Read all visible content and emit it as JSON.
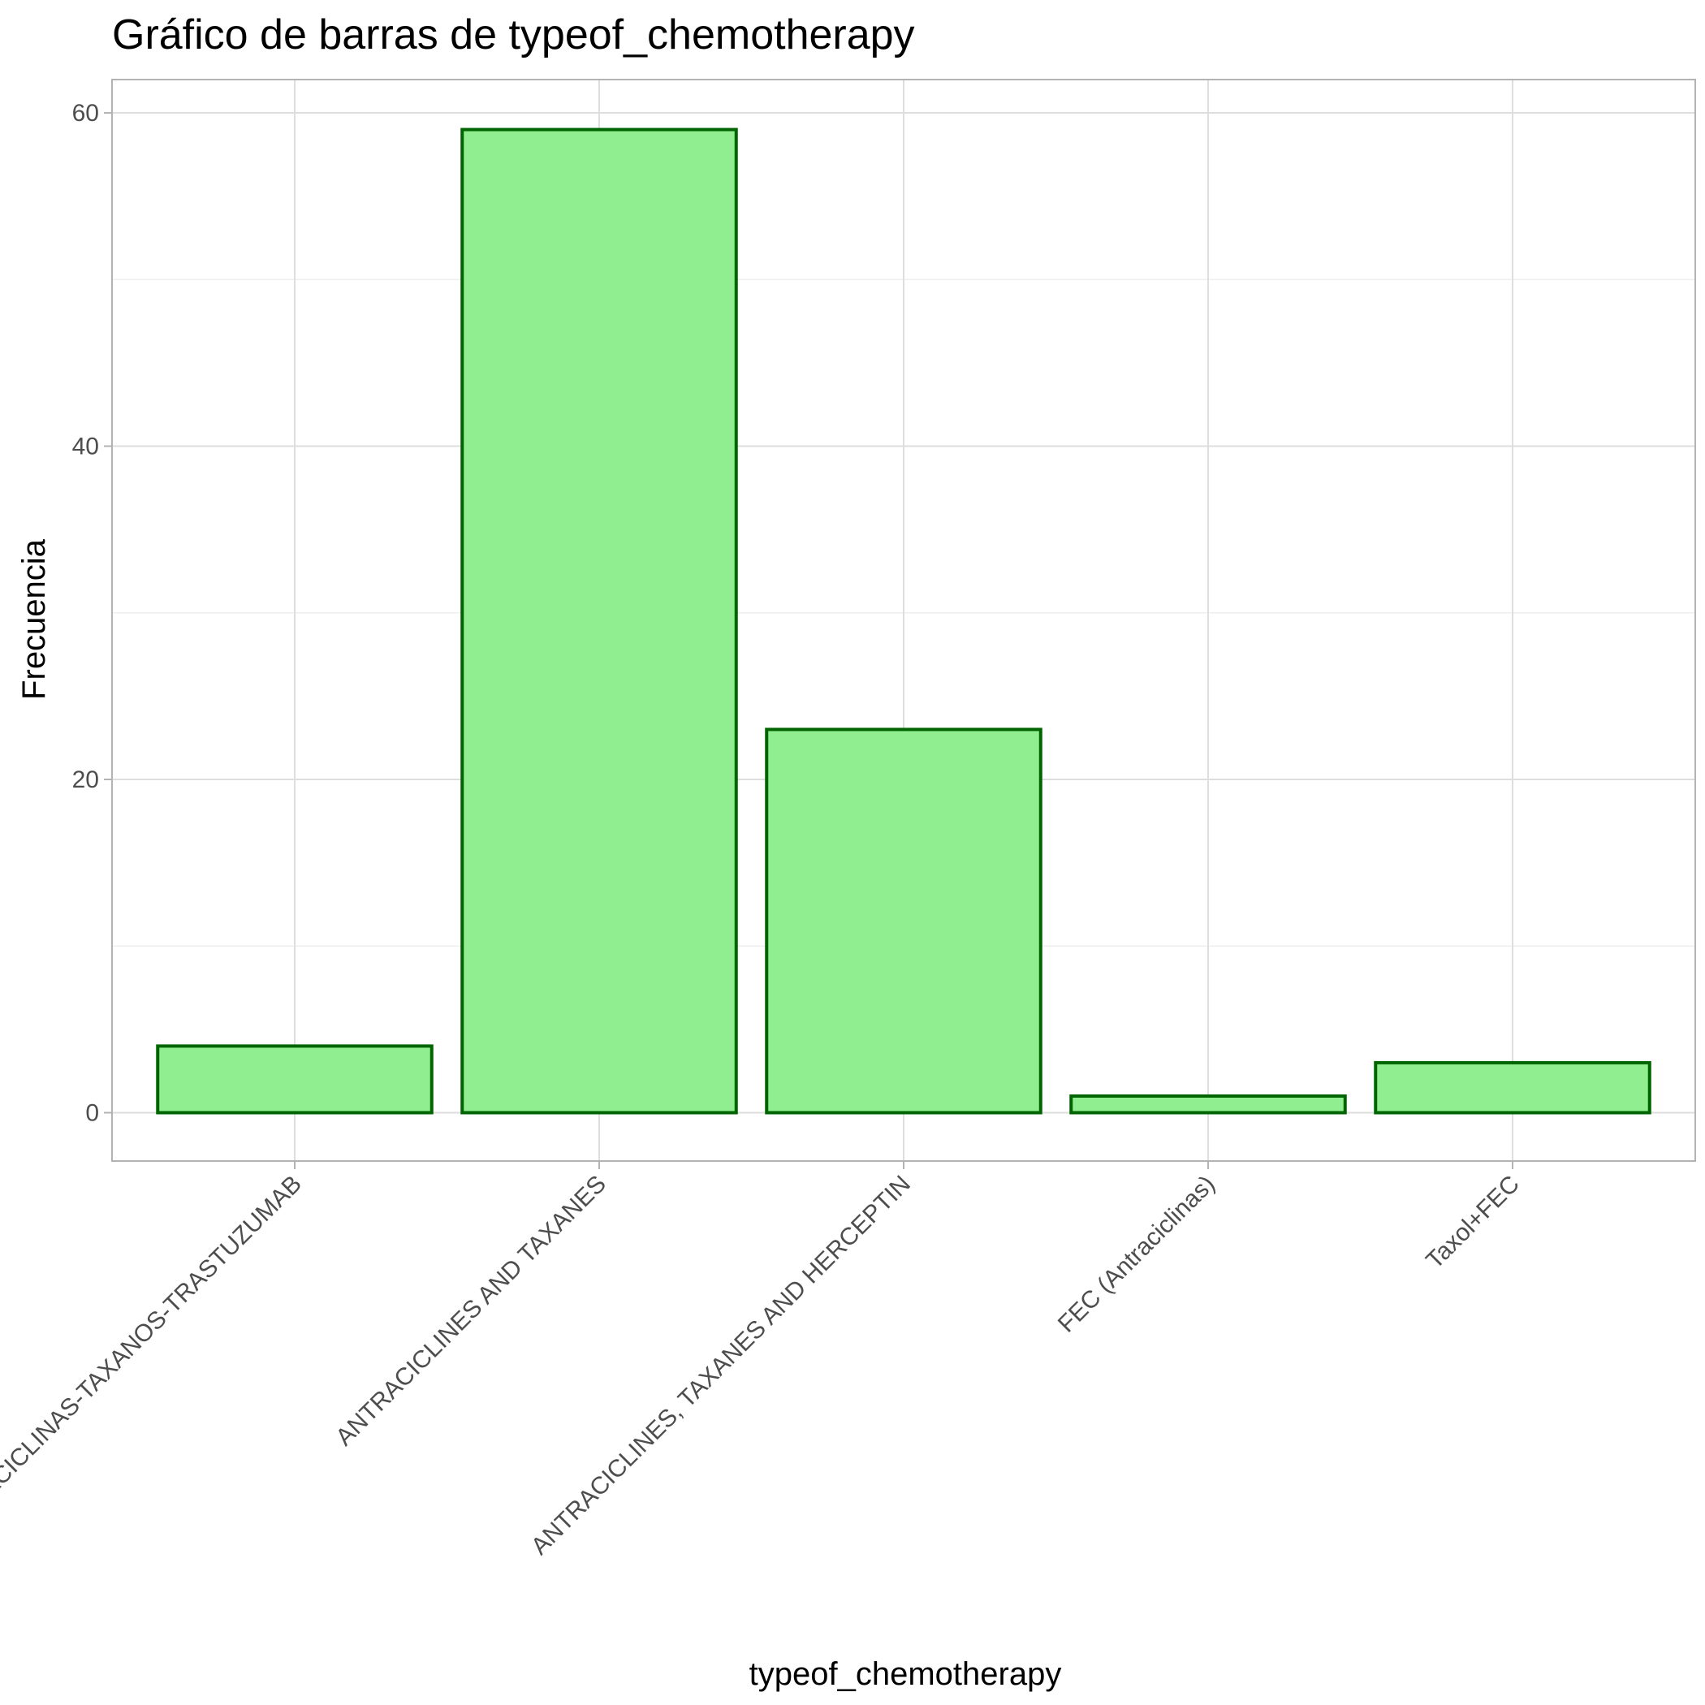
{
  "chart_data": {
    "type": "bar",
    "title": "Gráfico de barras de typeof_chemotherapy",
    "xlabel": "typeof_chemotherapy",
    "ylabel": "Frecuencia",
    "categories": [
      "ANTRACICLINAS-TAXANOS-TRASTUZUMAB",
      "ANTRACICLINES AND TAXANES",
      "ANTRACICLINES, TAXANES AND HERCEPTIN",
      "FEC (Antraciclinas)",
      "Taxol+FEC"
    ],
    "values": [
      4,
      59,
      23,
      1,
      3
    ],
    "ylim": [
      -2.9,
      62
    ],
    "yticks": [
      0,
      20,
      40,
      60
    ],
    "grid": true,
    "legend": "none",
    "colors": {
      "bar_fill": "#90ee90",
      "bar_stroke": "#006400"
    }
  }
}
